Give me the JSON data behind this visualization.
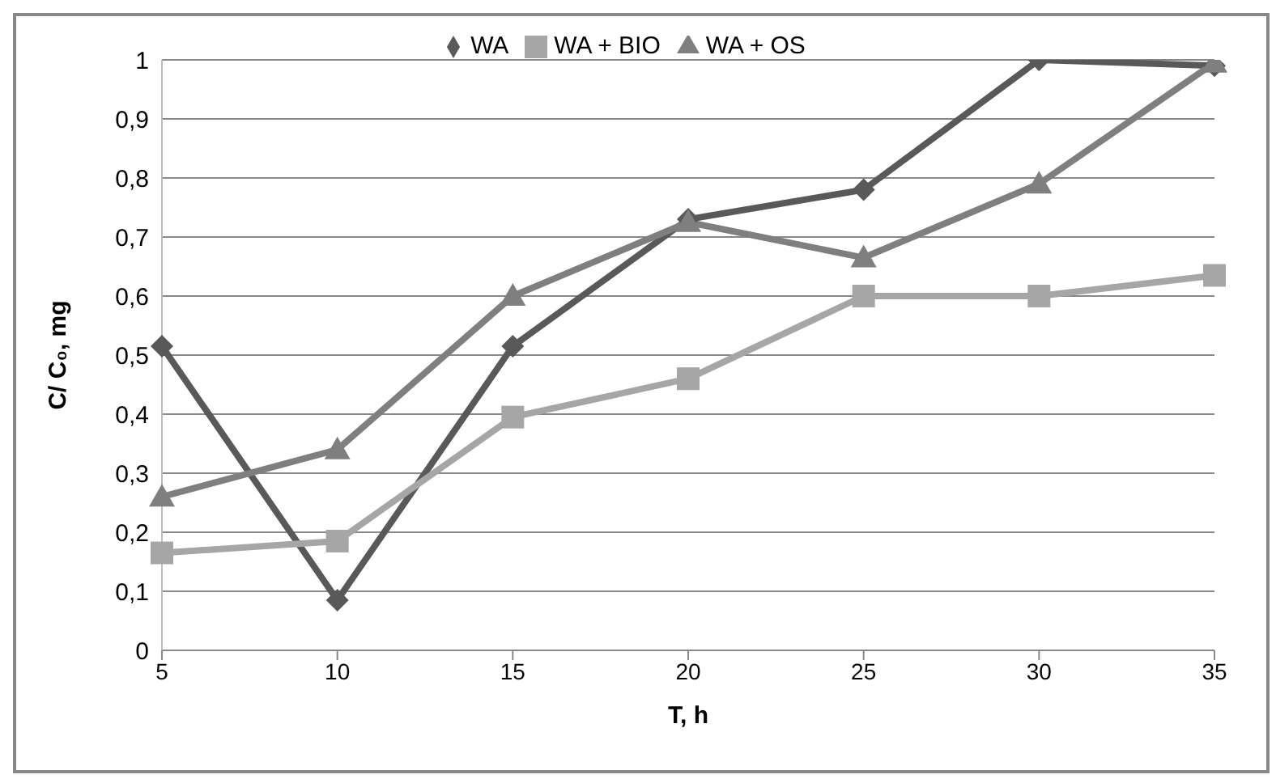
{
  "chart_data": {
    "type": "line",
    "xlabel": "T, h",
    "ylabel": "C/ C₀, mg",
    "categories": [
      "5",
      "10",
      "15",
      "20",
      "25",
      "30",
      "35"
    ],
    "series": [
      {
        "name": "WA",
        "color": "#595959",
        "marker": "diamond",
        "values": [
          0.515,
          0.085,
          0.515,
          0.73,
          0.78,
          1.0,
          0.99
        ]
      },
      {
        "name": "WA + BIO",
        "color": "#a6a6a6",
        "marker": "square",
        "values": [
          0.165,
          0.185,
          0.395,
          0.46,
          0.6,
          0.6,
          0.635
        ]
      },
      {
        "name": "WA + OS",
        "color": "#7f7f7f",
        "marker": "triangle",
        "values": [
          0.26,
          0.34,
          0.6,
          0.725,
          0.665,
          0.79,
          0.995
        ]
      }
    ],
    "ylim": [
      0,
      1
    ],
    "yticks": [
      0,
      {
        "value": 0.1,
        "label": "0,1"
      },
      {
        "value": 0.2,
        "label": "0,2"
      },
      {
        "value": 0.3,
        "label": "0,3"
      },
      {
        "value": 0.4,
        "label": "0,4"
      },
      {
        "value": 0.5,
        "label": "0,5"
      },
      {
        "value": 0.6,
        "label": "0,6"
      },
      {
        "value": 0.7,
        "label": "0,7"
      },
      {
        "value": 0.8,
        "label": "0,8"
      },
      {
        "value": 0.9,
        "label": "0,9"
      },
      1
    ],
    "grid": "y",
    "legend": "top"
  }
}
